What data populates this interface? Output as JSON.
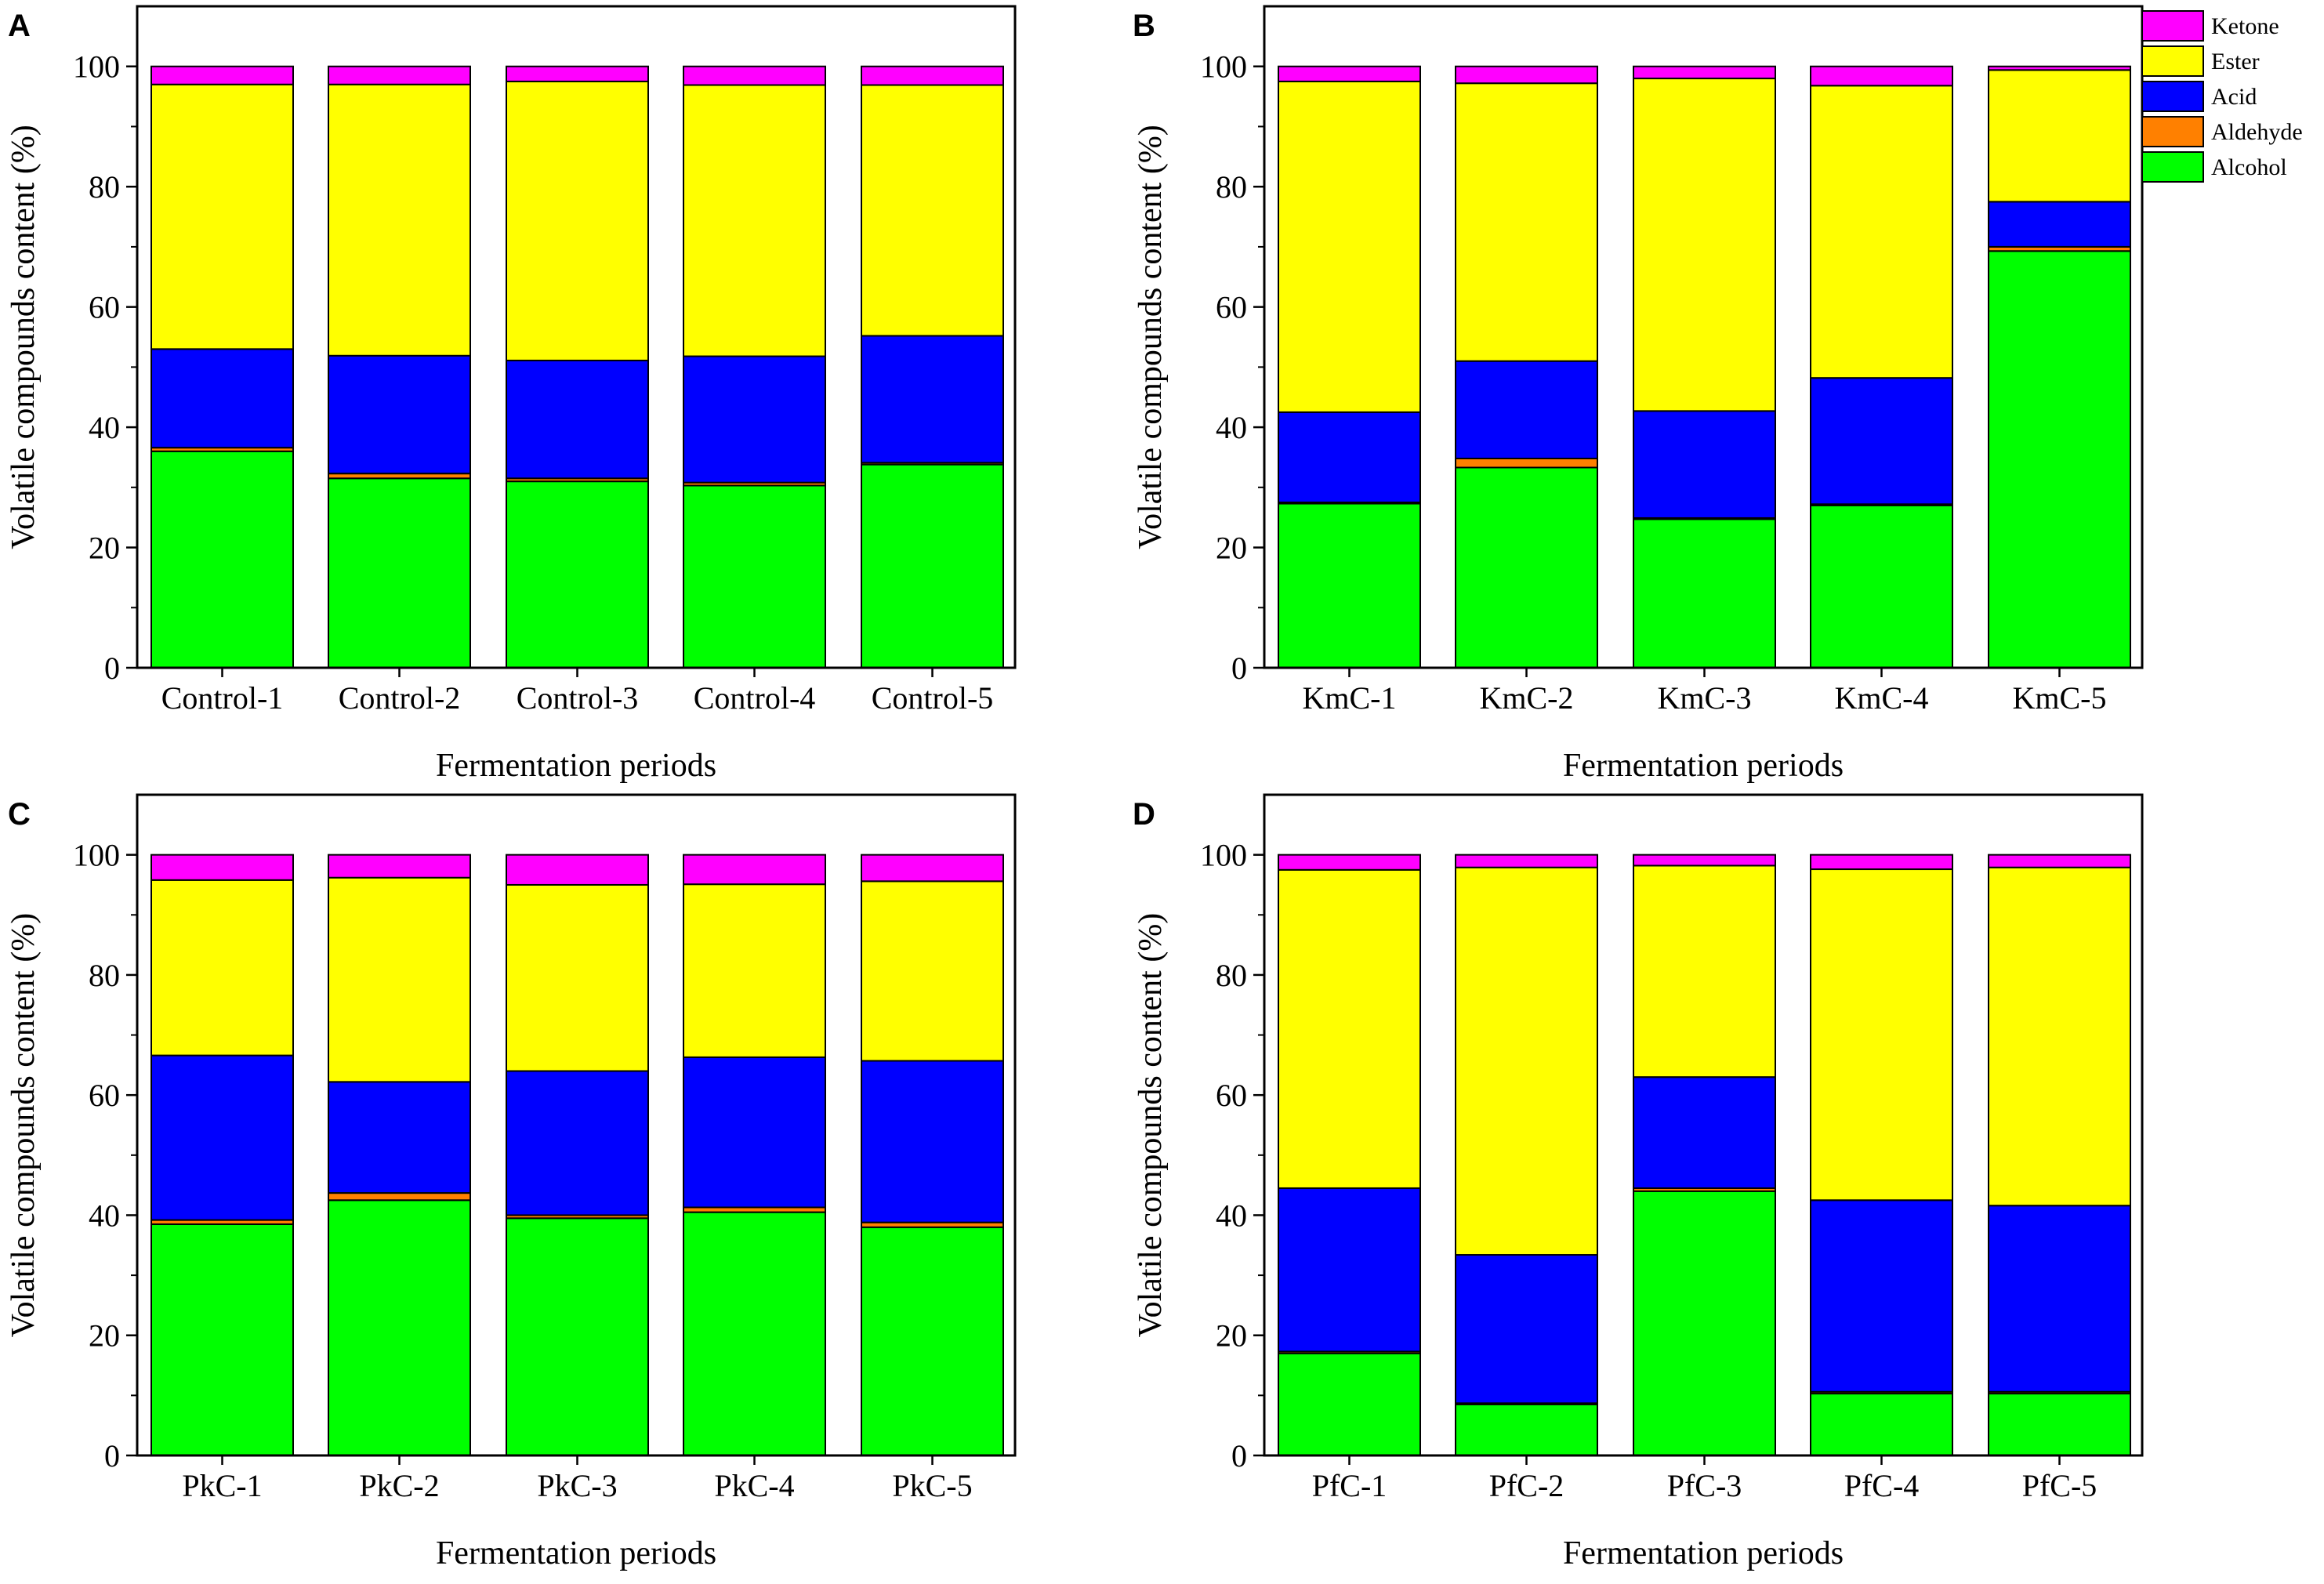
{
  "legend": [
    {
      "name": "Ketone",
      "color": "#ff00ff"
    },
    {
      "name": "Ester",
      "color": "#ffff00"
    },
    {
      "name": "Acid",
      "color": "#0000ff"
    },
    {
      "name": "Aldehyde",
      "color": "#ff8000"
    },
    {
      "name": "Alcohol",
      "color": "#00ff00"
    }
  ],
  "chart_data": [
    {
      "type": "bar",
      "stacked": true,
      "panel": "A",
      "title": "",
      "xlabel": "Fermentation periods",
      "ylabel": "Volatile compounds content (%)",
      "ylim": [
        0,
        110
      ],
      "yticks": [
        0,
        20,
        40,
        60,
        80,
        100
      ],
      "categories": [
        "Control-1",
        "Control-2",
        "Control-3",
        "Control-4",
        "Control-5"
      ],
      "series": [
        {
          "name": "Alcohol",
          "color": "#00ff00",
          "values": [
            36.0,
            31.5,
            31.0,
            30.3,
            33.8
          ]
        },
        {
          "name": "Aldehyde",
          "color": "#ff8000",
          "values": [
            0.6,
            0.8,
            0.5,
            0.5,
            0.3
          ]
        },
        {
          "name": "Acid",
          "color": "#0000ff",
          "values": [
            16.4,
            19.6,
            19.6,
            21.0,
            21.1
          ]
        },
        {
          "name": "Ester",
          "color": "#ffff00",
          "values": [
            44.0,
            45.1,
            46.4,
            45.1,
            41.7
          ]
        },
        {
          "name": "Ketone",
          "color": "#ff00ff",
          "values": [
            3.0,
            3.0,
            2.5,
            3.1,
            3.1
          ]
        }
      ]
    },
    {
      "type": "bar",
      "stacked": true,
      "panel": "B",
      "title": "",
      "xlabel": "Fermentation periods",
      "ylabel": "Volatile compounds content (%)",
      "ylim": [
        0,
        110
      ],
      "yticks": [
        0,
        20,
        40,
        60,
        80,
        100
      ],
      "categories": [
        "KmC-1",
        "KmC-2",
        "KmC-3",
        "KmC-4",
        "KmC-5"
      ],
      "series": [
        {
          "name": "Alcohol",
          "color": "#00ff00",
          "values": [
            27.3,
            33.3,
            24.7,
            27.0,
            69.3
          ]
        },
        {
          "name": "Aldehyde",
          "color": "#ff8000",
          "values": [
            0.2,
            1.5,
            0.2,
            0.2,
            0.7
          ]
        },
        {
          "name": "Acid",
          "color": "#0000ff",
          "values": [
            15.0,
            16.2,
            17.8,
            21.0,
            7.5
          ]
        },
        {
          "name": "Ester",
          "color": "#ffff00",
          "values": [
            55.0,
            46.2,
            55.3,
            48.6,
            21.9
          ]
        },
        {
          "name": "Ketone",
          "color": "#ff00ff",
          "values": [
            2.5,
            2.8,
            2.0,
            3.2,
            0.6
          ]
        }
      ]
    },
    {
      "type": "bar",
      "stacked": true,
      "panel": "C",
      "title": "",
      "xlabel": "Fermentation periods",
      "ylabel": "Volatile compounds content (%)",
      "ylim": [
        0,
        110
      ],
      "yticks": [
        0,
        20,
        40,
        60,
        80,
        100
      ],
      "categories": [
        "PkC-1",
        "PkC-2",
        "PkC-3",
        "PkC-4",
        "PkC-5"
      ],
      "series": [
        {
          "name": "Alcohol",
          "color": "#00ff00",
          "values": [
            38.5,
            42.5,
            39.5,
            40.5,
            38.0
          ]
        },
        {
          "name": "Aldehyde",
          "color": "#ff8000",
          "values": [
            0.7,
            1.2,
            0.5,
            0.8,
            0.8
          ]
        },
        {
          "name": "Acid",
          "color": "#0000ff",
          "values": [
            27.4,
            18.5,
            24.0,
            25.0,
            26.9
          ]
        },
        {
          "name": "Ester",
          "color": "#ffff00",
          "values": [
            29.2,
            34.0,
            31.0,
            28.8,
            29.9
          ]
        },
        {
          "name": "Ketone",
          "color": "#ff00ff",
          "values": [
            4.2,
            3.8,
            5.0,
            4.9,
            4.4
          ]
        }
      ]
    },
    {
      "type": "bar",
      "stacked": true,
      "panel": "D",
      "title": "",
      "xlabel": "Fermentation periods",
      "ylabel": "Volatile compounds content (%)",
      "ylim": [
        0,
        110
      ],
      "yticks": [
        0,
        20,
        40,
        60,
        80,
        100
      ],
      "categories": [
        "PfC-1",
        "PfC-2",
        "PfC-3",
        "PfC-4",
        "PfC-5"
      ],
      "series": [
        {
          "name": "Alcohol",
          "color": "#00ff00",
          "values": [
            17.0,
            8.5,
            44.0,
            10.3,
            10.3
          ]
        },
        {
          "name": "Aldehyde",
          "color": "#ff8000",
          "values": [
            0.3,
            0.2,
            0.5,
            0.3,
            0.3
          ]
        },
        {
          "name": "Acid",
          "color": "#0000ff",
          "values": [
            27.2,
            24.7,
            18.5,
            31.9,
            31.0
          ]
        },
        {
          "name": "Ester",
          "color": "#ffff00",
          "values": [
            53.0,
            64.5,
            35.2,
            55.1,
            56.3
          ]
        },
        {
          "name": "Ketone",
          "color": "#ff00ff",
          "values": [
            2.5,
            2.1,
            1.8,
            2.4,
            2.1
          ]
        }
      ]
    }
  ]
}
